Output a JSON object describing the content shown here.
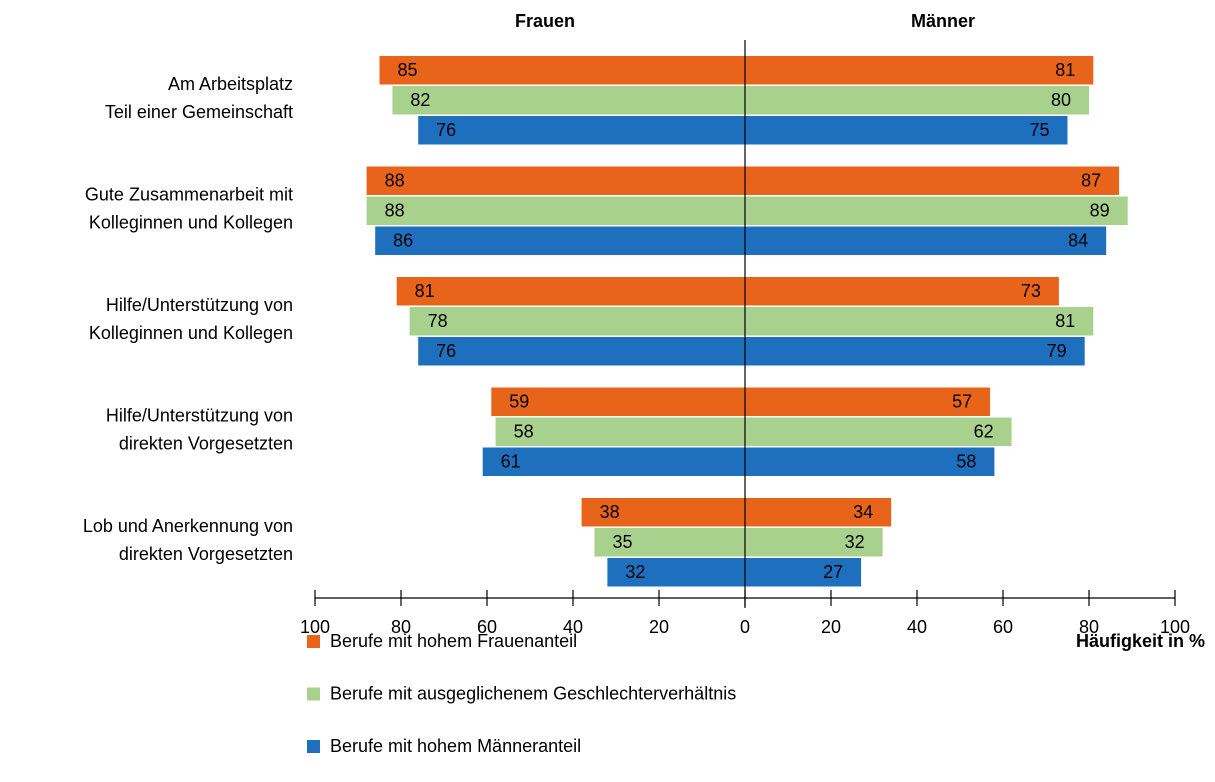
{
  "chart_data": {
    "type": "butterfly",
    "left_title": "Frauen",
    "right_title": "Männer",
    "xlabel": "Häufigkeit in %",
    "categories": [
      [
        "Am Arbeitsplatz",
        "Teil einer Gemeinschaft"
      ],
      [
        "Gute Zusammenarbeit mit",
        "Kolleginnen und Kollegen"
      ],
      [
        "Hilfe/Unterstützung von",
        "Kolleginnen und Kollegen"
      ],
      [
        "Hilfe/Unterstützung von",
        "direkten Vorgesetzten"
      ],
      [
        "Lob und Anerkennung von",
        "direkten Vorgesetzten"
      ]
    ],
    "series": [
      {
        "name": "Berufe mit hohem Frauenanteil",
        "color": "#e8641b",
        "label_color": "#000000",
        "left": [
          85,
          88,
          81,
          59,
          38
        ],
        "right": [
          81,
          87,
          73,
          57,
          34
        ]
      },
      {
        "name": "Berufe mit ausgeglichenem Geschlechterverhältnis",
        "color": "#a9d18e",
        "label_color": "#000000",
        "left": [
          82,
          88,
          78,
          58,
          35
        ],
        "right": [
          80,
          89,
          81,
          62,
          32
        ]
      },
      {
        "name": "Berufe mit hohem Männeranteil",
        "color": "#1f6fbf",
        "label_color": "#ffffff",
        "left": [
          76,
          86,
          76,
          61,
          32
        ],
        "right": [
          75,
          84,
          79,
          58,
          27
        ]
      }
    ],
    "xlim": [
      0,
      100
    ],
    "xticks": [
      0,
      20,
      40,
      60,
      80,
      100
    ]
  }
}
